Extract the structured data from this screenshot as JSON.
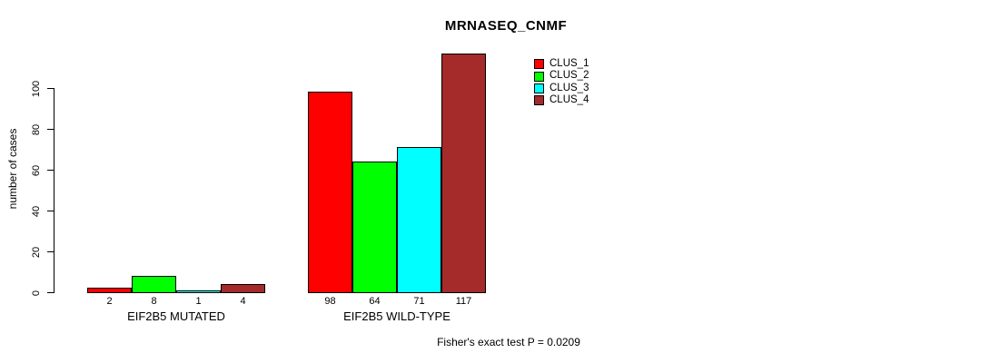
{
  "title": "MRNASEQ_CNMF",
  "footnote": "Fisher's exact test P = 0.0209",
  "chart_data": {
    "type": "bar",
    "title": "MRNASEQ_CNMF",
    "xlabel": "",
    "ylabel": "number of cases",
    "categories": [
      "EIF2B5 MUTATED",
      "EIF2B5 WILD-TYPE"
    ],
    "series": [
      {
        "name": "CLUS_1",
        "color": "#ff0000",
        "values": [
          2,
          98
        ]
      },
      {
        "name": "CLUS_2",
        "color": "#00ff00",
        "values": [
          8,
          64
        ]
      },
      {
        "name": "CLUS_3",
        "color": "#00ffff",
        "values": [
          1,
          71
        ]
      },
      {
        "name": "CLUS_4",
        "color": "#a52a2a",
        "values": [
          4,
          117
        ]
      }
    ],
    "bar_value_labels": [
      [
        "2",
        "8",
        "1",
        "4"
      ],
      [
        "98",
        "64",
        "71",
        "117"
      ]
    ],
    "yticks": [
      0,
      20,
      40,
      60,
      80,
      100
    ],
    "ylim": [
      0,
      117
    ],
    "grid": false,
    "legend_position": "top-right",
    "annotation": "Fisher's exact test P = 0.0209",
    "axis_color": "#000000",
    "bar_border_color": "#000000"
  }
}
